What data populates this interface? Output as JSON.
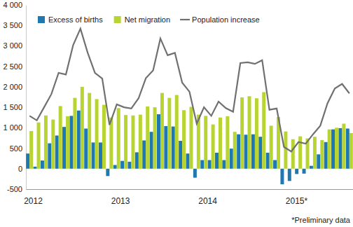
{
  "chart_data": {
    "type": "bar",
    "categories": [
      "2012",
      null,
      null,
      null,
      null,
      null,
      null,
      null,
      null,
      null,
      null,
      null,
      "2013",
      null,
      null,
      null,
      null,
      null,
      null,
      null,
      null,
      null,
      null,
      null,
      "2014",
      null,
      null,
      null,
      null,
      null,
      null,
      null,
      null,
      null,
      null,
      null,
      "2015*",
      null,
      null,
      null,
      null,
      null,
      null,
      null,
      null
    ],
    "series": [
      {
        "name": "Excess of births",
        "color": "#1f78b0",
        "type": "bar",
        "values": [
          370,
          50,
          200,
          620,
          810,
          1020,
          1290,
          1420,
          980,
          640,
          640,
          -180,
          90,
          190,
          170,
          400,
          690,
          900,
          1330,
          1040,
          1030,
          680,
          370,
          -220,
          210,
          210,
          390,
          210,
          490,
          840,
          830,
          840,
          780,
          390,
          210,
          -380,
          -300,
          -130,
          -120,
          70,
          350,
          650,
          960,
          990,
          980
        ]
      },
      {
        "name": "Net migration",
        "color": "#b8d432",
        "type": "bar",
        "values": [
          920,
          1130,
          1300,
          1200,
          1530,
          1280,
          1730,
          2000,
          1850,
          1700,
          1560,
          1250,
          1480,
          1310,
          1300,
          1320,
          1520,
          1500,
          1850,
          1730,
          1800,
          1430,
          1510,
          1320,
          1290,
          1080,
          1250,
          1280,
          900,
          1740,
          1770,
          1720,
          1870,
          1050,
          1260,
          910,
          720,
          790,
          740,
          780,
          700,
          960,
          1000,
          1100,
          870
        ]
      },
      {
        "name": "Population increase",
        "color": "#707070",
        "type": "line",
        "values": [
          1290,
          1180,
          1500,
          1820,
          2340,
          2300,
          3020,
          3420,
          2830,
          2340,
          2200,
          1070,
          1570,
          1500,
          1470,
          1720,
          2210,
          2400,
          3180,
          2770,
          2830,
          2100,
          1880,
          1100,
          1500,
          1290,
          1640,
          1480,
          1390,
          2580,
          2600,
          2560,
          2650,
          1440,
          1470,
          530,
          420,
          650,
          610,
          840,
          1050,
          1600,
          1960,
          2070,
          1840
        ]
      }
    ],
    "ylim": [
      -500,
      4000
    ],
    "yticks": [
      -500,
      0,
      500,
      {
        "value": 1000,
        "label": "1 000"
      },
      {
        "value": 1500,
        "label": "1 500"
      },
      {
        "value": 2000,
        "label": "2 000"
      },
      {
        "value": 2500,
        "label": "2 500"
      },
      {
        "value": 3000,
        "label": "3 000"
      },
      {
        "value": 3500,
        "label": "3 500"
      },
      {
        "value": 4000,
        "label": "4 000"
      }
    ],
    "grid": false,
    "legend": "upper left",
    "annotations": [
      "*Preliminary data"
    ]
  }
}
